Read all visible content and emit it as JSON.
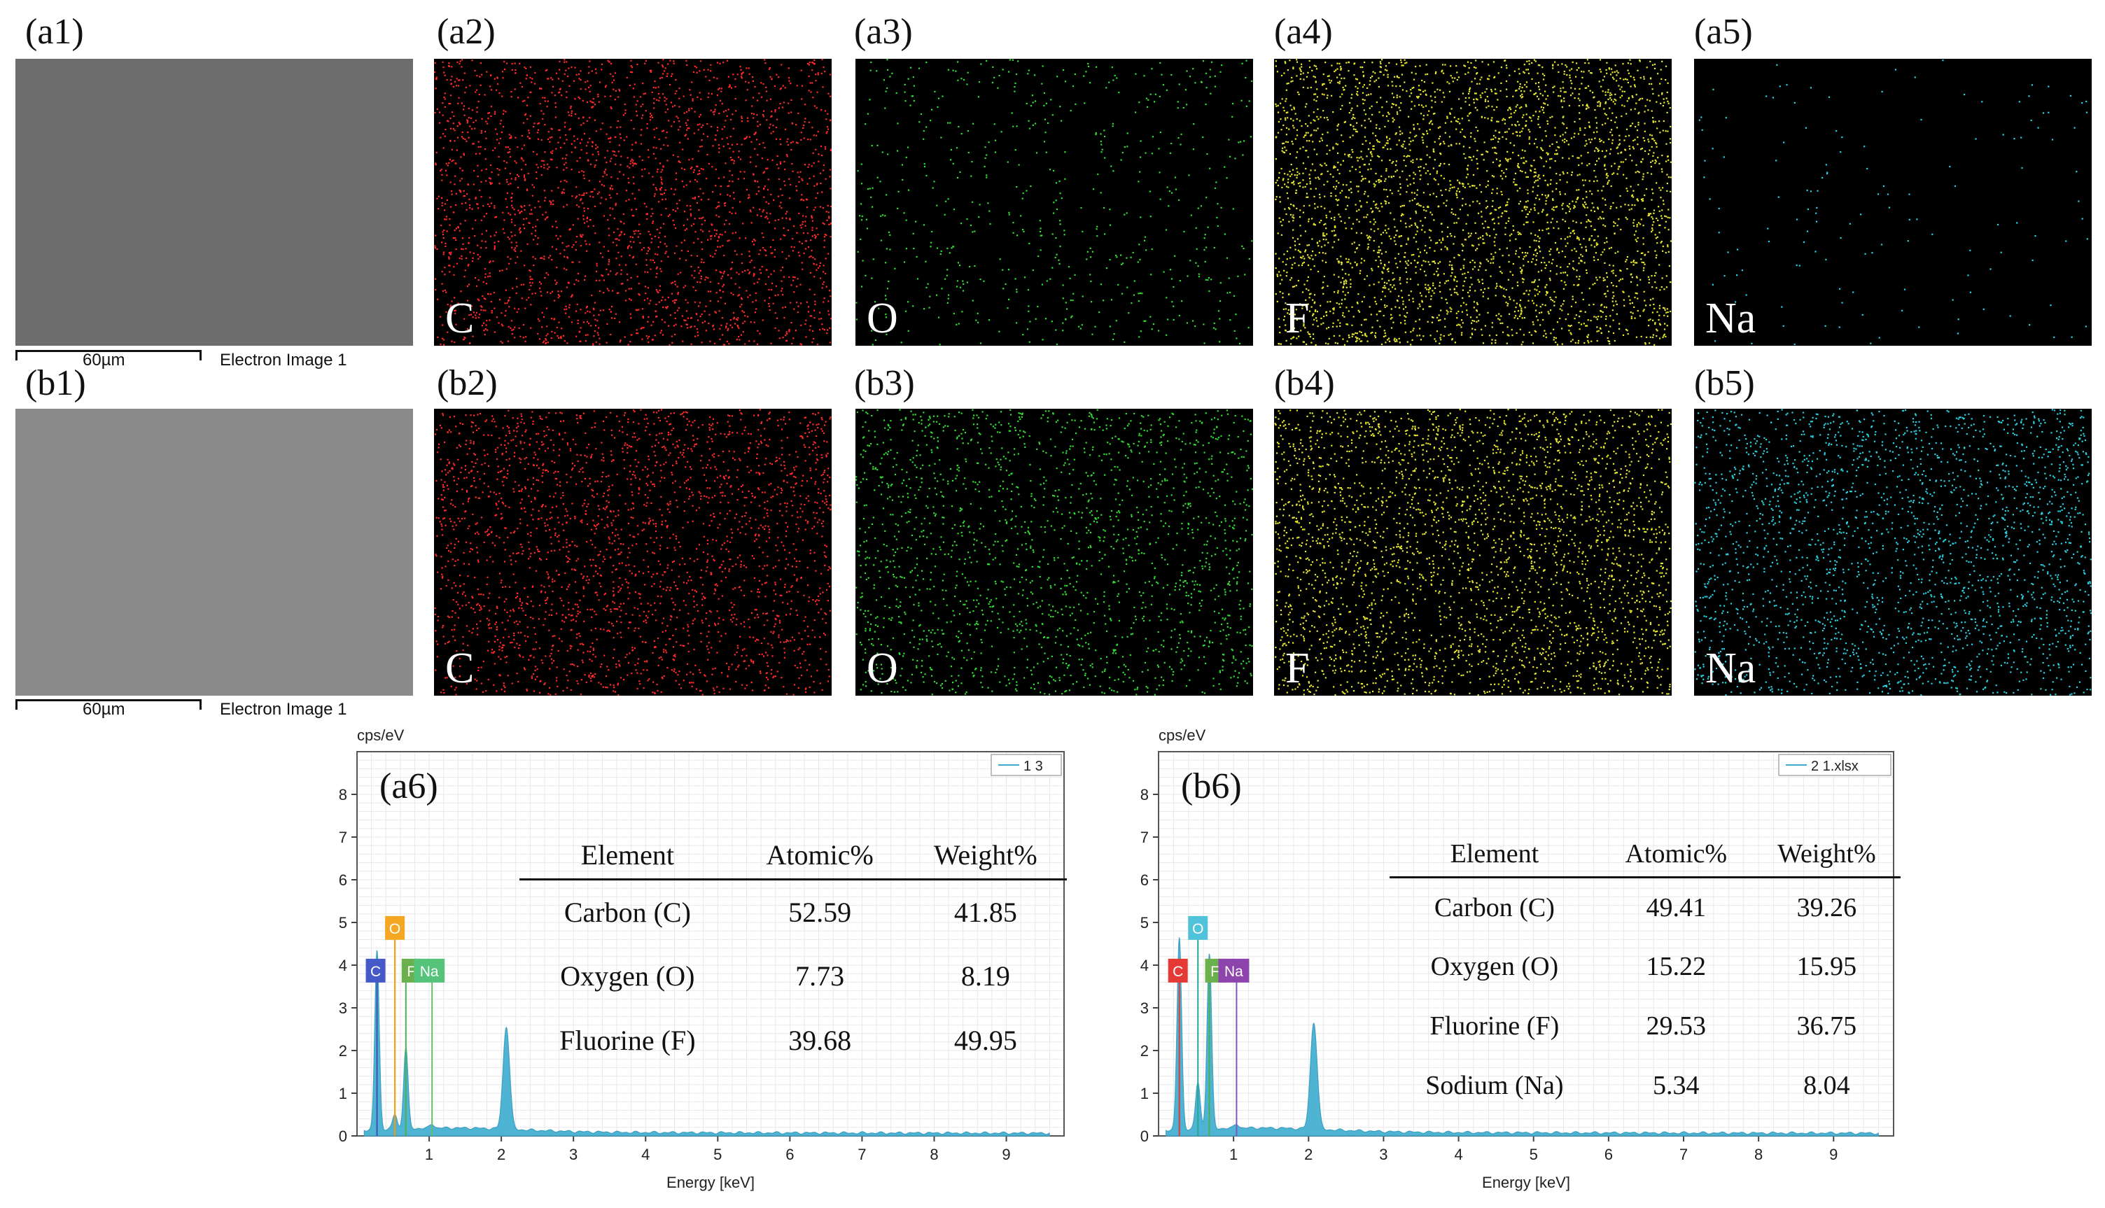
{
  "panels": {
    "a1": {
      "label": "(a1)",
      "scale": "60µm",
      "caption": "Electron Image 1"
    },
    "a2": {
      "label": "(a2)",
      "element": "C",
      "color": "#ff2a2a"
    },
    "a3": {
      "label": "(a3)",
      "element": "O",
      "color": "#33dd33"
    },
    "a4": {
      "label": "(a4)",
      "element": "F",
      "color": "#e8e830"
    },
    "a5": {
      "label": "(a5)",
      "element": "Na",
      "color": "#2ad0e0"
    },
    "b1": {
      "label": "(b1)",
      "scale": "60µm",
      "caption": "Electron Image 1"
    },
    "b2": {
      "label": "(b2)",
      "element": "C",
      "color": "#ff2a2a"
    },
    "b3": {
      "label": "(b3)",
      "element": "O",
      "color": "#33dd33"
    },
    "b4": {
      "label": "(b4)",
      "element": "F",
      "color": "#e8e830"
    },
    "b5": {
      "label": "(b5)",
      "element": "Na",
      "color": "#2ad0e0"
    }
  },
  "chart_data": [
    {
      "type": "area",
      "panel": "(a6)",
      "ylabel": "cps/eV",
      "xlabel": "Energy [keV]",
      "legend": "1 3",
      "xlim": [
        0,
        9.8
      ],
      "ylim": [
        0,
        9
      ],
      "xticks": [
        1,
        2,
        3,
        4,
        5,
        6,
        7,
        8,
        9
      ],
      "yticks": [
        0,
        1,
        2,
        3,
        4,
        5,
        6,
        7,
        8
      ],
      "peaks": [
        {
          "name": "C",
          "energy": 0.277,
          "height": 4.2,
          "color": "#3f51b5"
        },
        {
          "name": "O",
          "energy": 0.525,
          "height": 0.35,
          "color": "#ff9800"
        },
        {
          "name": "F",
          "energy": 0.677,
          "height": 1.9,
          "color": "#4caf50"
        },
        {
          "name": "Na",
          "energy": 1.04,
          "height": 0.1,
          "color": "#66bb6a"
        },
        {
          "name": "",
          "energy": 2.07,
          "height": 2.4,
          "color": "#3fa9c9"
        }
      ],
      "element_tags": [
        {
          "text": "O",
          "color": "#f5a623"
        },
        {
          "text": "C",
          "color": "#4559c9"
        },
        {
          "text": "F",
          "color": "#6ab04c"
        },
        {
          "text": "Na",
          "color": "#55c47a"
        }
      ],
      "table": {
        "headers": [
          "Element",
          "Atomic%",
          "Weight%"
        ],
        "rows": [
          [
            "Carbon (C)",
            "52.59",
            "41.85"
          ],
          [
            "Oxygen (O)",
            "7.73",
            "8.19"
          ],
          [
            "Fluorine (F)",
            "39.68",
            "49.95"
          ]
        ]
      }
    },
    {
      "type": "area",
      "panel": "(b6)",
      "ylabel": "cps/eV",
      "xlabel": "Energy [keV]",
      "legend": "2 1.xlsx",
      "xlim": [
        0,
        9.8
      ],
      "ylim": [
        0,
        9
      ],
      "xticks": [
        1,
        2,
        3,
        4,
        5,
        6,
        7,
        8,
        9
      ],
      "yticks": [
        0,
        1,
        2,
        3,
        4,
        5,
        6,
        7,
        8
      ],
      "peaks": [
        {
          "name": "C",
          "energy": 0.277,
          "height": 4.5,
          "color": "#e53935"
        },
        {
          "name": "O",
          "energy": 0.525,
          "height": 1.1,
          "color": "#26a69a"
        },
        {
          "name": "F",
          "energy": 0.677,
          "height": 4.1,
          "color": "#4caf50"
        },
        {
          "name": "Na",
          "energy": 1.04,
          "height": 0.1,
          "color": "#7e57c2"
        },
        {
          "name": "",
          "energy": 2.07,
          "height": 2.5,
          "color": "#3fa9c9"
        }
      ],
      "element_tags": [
        {
          "text": "O",
          "color": "#4fc3d9"
        },
        {
          "text": "C",
          "color": "#e53935"
        },
        {
          "text": "F",
          "color": "#6ab04c"
        },
        {
          "text": "Na",
          "color": "#8e44ad"
        }
      ],
      "table": {
        "headers": [
          "Element",
          "Atomic%",
          "Weight%"
        ],
        "rows": [
          [
            "Carbon (C)",
            "49.41",
            "39.26"
          ],
          [
            "Oxygen (O)",
            "15.22",
            "15.95"
          ],
          [
            "Fluorine (F)",
            "29.53",
            "36.75"
          ],
          [
            "Sodium (Na)",
            "5.34",
            "8.04"
          ]
        ]
      }
    }
  ]
}
